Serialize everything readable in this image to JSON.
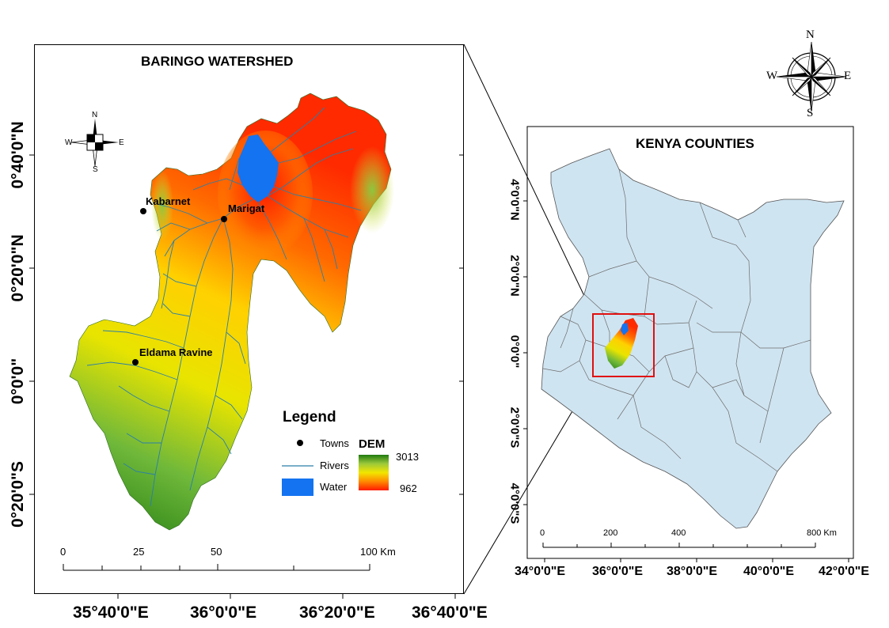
{
  "left_map": {
    "title": "BARINGO WATERSHED",
    "lon_labels": [
      "35°40'0\"E",
      "36°0'0\"E",
      "36°20'0\"E",
      "36°40'0\"E"
    ],
    "lat_labels": [
      "0°40'0\"N",
      "0°20'0\"N",
      "0°0'0\"",
      "0°20'0\"S"
    ],
    "towns": [
      "Kabarnet",
      "Marigat",
      "Eldama Ravine"
    ],
    "scale": [
      "0",
      "25",
      "50",
      "100 Km"
    ],
    "north_arrow": {
      "n": "N",
      "s": "S",
      "e": "E",
      "w": "W"
    }
  },
  "legend": {
    "title": "Legend",
    "towns_label": "Towns",
    "rivers_label": "Rivers",
    "water_label": "Water",
    "dem_title": "DEM",
    "dem_high": "3013",
    "dem_low": "962"
  },
  "right_map": {
    "title": "KENYA COUNTIES",
    "lon_labels": [
      "34°0'0\"E",
      "36°0'0\"E",
      "38°0'0\"E",
      "40°0'0\"E",
      "42°0'0\"E"
    ],
    "lat_labels": [
      "4°0'0\"N",
      "2°0'0\"N",
      "0°0'0\"",
      "2°0'0\"S",
      "4°0'0\"S"
    ],
    "scale": [
      "0",
      "200",
      "400",
      "800 Km"
    ]
  },
  "compass": {
    "n": "N",
    "s": "S",
    "e": "E",
    "w": "W"
  },
  "colors": {
    "water": "#1473f0",
    "river": "#2a7fa8",
    "kenya_fill": "#cfe4f1",
    "inset_box": "#e01010",
    "dem_high": "#1f7a10",
    "dem_mid": "#f2e600",
    "dem_low": "#ff1a00"
  }
}
